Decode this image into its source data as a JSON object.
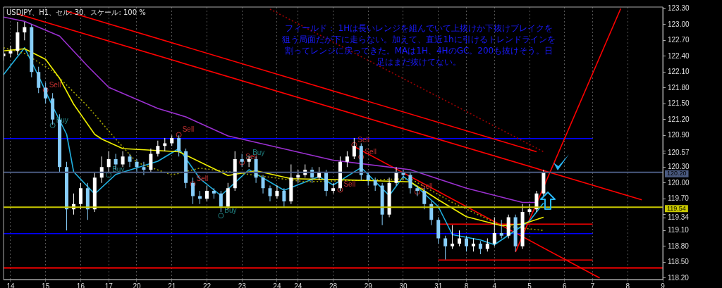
{
  "chart_data": {
    "type": "candlestick",
    "title": "USDJPY、H1、セル: 30、スケール: 100 %",
    "annotations": [
      "フィールド： 1Hは長いレンジを組んでいて上抜けか下抜けブレイクを狙う局面だが下に走らない。加えて、直近1hに引けるトレンドラインを割ってレンジに戻ってきた。MAは1H、4HのGC。200も抜けそう。日足はまだ抜けてない。"
    ],
    "categories": [
      null,
      "14",
      null,
      null,
      null,
      null,
      "15",
      null,
      null,
      null,
      null,
      "16",
      null,
      null,
      null,
      "17",
      null,
      null,
      null,
      "20",
      null,
      null,
      null,
      null,
      "21",
      null,
      null,
      null,
      null,
      "22",
      null,
      null,
      null,
      null,
      "23",
      null,
      null,
      null,
      null,
      "24",
      null,
      null,
      "24",
      null,
      null,
      null,
      null,
      "28",
      null,
      null,
      null,
      null,
      "29",
      null,
      null,
      null,
      null,
      "30",
      null,
      null,
      null,
      null,
      "31",
      null,
      null,
      null,
      "8",
      null,
      null,
      null,
      "4",
      null,
      null,
      null,
      null,
      "5",
      null,
      null,
      null,
      null,
      "6",
      null,
      null,
      null,
      "7",
      null,
      null,
      null,
      null,
      "8",
      null,
      null,
      null,
      null,
      "9"
    ],
    "ylim": [
      118.17,
      123.33
    ],
    "yticks": [
      {
        "value": 118.2,
        "label": "118.20"
      },
      {
        "value": 118.5,
        "label": "118.50"
      },
      {
        "value": 118.8,
        "label": "118.80"
      },
      {
        "value": 119.1,
        "label": "119.10"
      },
      {
        "value": 119.34,
        "label": "119.34"
      },
      {
        "value": 119.4,
        "label": null
      },
      {
        "value": 119.7,
        "label": "119.70"
      },
      {
        "value": 120.0,
        "label": "120.00"
      },
      {
        "value": 120.3,
        "label": "120.30"
      },
      {
        "value": 120.57,
        "label": "120.57"
      },
      {
        "value": 120.6,
        "label": null
      },
      {
        "value": 120.9,
        "label": "120.90"
      },
      {
        "value": 121.2,
        "label": "121.20"
      },
      {
        "value": 121.5,
        "label": "121.50"
      },
      {
        "value": 121.8,
        "label": "121.80"
      },
      {
        "value": 122.1,
        "label": "122.10"
      },
      {
        "value": 122.4,
        "label": "122.40"
      },
      {
        "value": 122.7,
        "label": "122.70"
      },
      {
        "value": 123.0,
        "label": "123.00"
      },
      {
        "value": 123.3,
        "label": "123.30"
      }
    ],
    "grid": "x",
    "ref_lines": [
      {
        "axis": "y",
        "value": 120.2,
        "label": "120.20",
        "color": "#4a5a80"
      },
      {
        "axis": "y",
        "value": 119.54,
        "label": "119.54",
        "color": "#c8c800"
      },
      {
        "axis": "y",
        "value": 118.39,
        "color": "#ff0000"
      }
    ],
    "series": [
      {
        "colors": [
          "#ffffff",
          "#ffffff",
          "#ffffff",
          "#ffffff",
          "#87cefa",
          "#87cefa",
          "#87cefa",
          "#87cefa",
          "#87cefa",
          "#87cefa",
          "#ffffff",
          "#ffffff",
          "#87cefa",
          "#ffffff",
          "#ffffff",
          "#ffffff",
          "#87cefa",
          "#ffffff",
          "#87cefa",
          "#87cefa",
          "#87cefa",
          "#ffffff",
          "#ffffff",
          "#ffffff",
          "#ffffff",
          "#87cefa",
          "#87cefa",
          "#87cefa",
          "#87cefa",
          "#ffffff",
          "#87cefa",
          "#87cefa",
          "#ffffff",
          "#ffffff",
          "#87cefa",
          "#ffffff",
          "#87cefa",
          "#87cefa",
          "#87cefa",
          "#ffffff",
          "#87cefa",
          "#ffffff",
          "#ffffff",
          "#ffffff",
          "#87cefa",
          "#ffffff",
          "#87cefa",
          "#ffffff",
          "#ffffff",
          "#ffffff",
          "#ffffff",
          "#87cefa",
          "#87cefa",
          "#87cefa",
          "#87cefa",
          "#ffffff",
          "#ffffff",
          "#87cefa",
          "#87cefa",
          "#87cefa",
          "#87cefa",
          "#87cefa",
          "#87cefa",
          "#87cefa",
          "#ffffff",
          "#ffffff",
          "#87cefa",
          "#ffffff",
          "#87cefa",
          "#ffffff",
          "#ffffff",
          "#87cefa",
          "#ffffff",
          "#87cefa",
          "#ffffff",
          "#ffffff",
          "#ffffff",
          "#ffffff",
          null,
          null,
          null,
          null,
          null,
          null,
          null,
          null,
          null,
          null,
          null,
          null,
          null,
          null,
          null,
          null,
          null
        ],
        "ohlc": [
          [
            122.4,
            122.55,
            122.32,
            122.45
          ],
          [
            122.45,
            122.6,
            122.38,
            122.5
          ],
          [
            122.5,
            123.05,
            122.42,
            122.85
          ],
          [
            122.85,
            123.05,
            122.7,
            122.95
          ],
          [
            122.95,
            123.0,
            122.0,
            122.1
          ],
          [
            122.1,
            122.2,
            121.7,
            121.8
          ],
          [
            121.8,
            121.9,
            121.5,
            121.6
          ],
          [
            121.6,
            121.7,
            121.1,
            121.2
          ],
          [
            121.2,
            121.3,
            120.2,
            120.3
          ],
          [
            120.3,
            120.4,
            119.1,
            119.5
          ],
          [
            119.5,
            119.8,
            119.4,
            119.6
          ],
          [
            119.6,
            120.0,
            119.5,
            119.9
          ],
          [
            119.9,
            120.0,
            119.3,
            119.5
          ],
          [
            119.5,
            120.2,
            119.45,
            120.1
          ],
          [
            120.1,
            120.5,
            120.0,
            120.3
          ],
          [
            120.3,
            120.6,
            120.2,
            120.45
          ],
          [
            120.45,
            120.55,
            120.25,
            120.35
          ],
          [
            120.35,
            120.6,
            120.3,
            120.5
          ],
          [
            120.5,
            120.55,
            120.3,
            120.4
          ],
          [
            120.4,
            120.45,
            120.2,
            120.3
          ],
          [
            120.3,
            120.4,
            120.15,
            120.25
          ],
          [
            120.25,
            120.65,
            120.2,
            120.55
          ],
          [
            120.55,
            120.8,
            120.5,
            120.7
          ],
          [
            120.7,
            120.85,
            120.6,
            120.75
          ],
          [
            120.75,
            120.9,
            120.7,
            120.85
          ],
          [
            120.85,
            120.9,
            120.5,
            120.6
          ],
          [
            120.6,
            120.65,
            119.9,
            120.0
          ],
          [
            120.0,
            120.1,
            119.6,
            119.75
          ],
          [
            119.75,
            119.85,
            119.6,
            119.7
          ],
          [
            119.7,
            119.95,
            119.65,
            119.85
          ],
          [
            119.85,
            119.9,
            119.7,
            119.8
          ],
          [
            119.8,
            119.85,
            119.45,
            119.55
          ],
          [
            119.55,
            120.0,
            119.5,
            119.9
          ],
          [
            119.9,
            120.6,
            119.85,
            120.45
          ],
          [
            120.45,
            120.55,
            120.3,
            120.4
          ],
          [
            120.4,
            120.5,
            120.3,
            120.45
          ],
          [
            120.45,
            120.5,
            120.0,
            120.1
          ],
          [
            120.1,
            120.15,
            119.8,
            119.9
          ],
          [
            119.9,
            119.95,
            119.65,
            119.75
          ],
          [
            119.75,
            119.95,
            119.7,
            119.85
          ],
          [
            119.85,
            119.9,
            119.55,
            119.65
          ],
          [
            119.65,
            120.35,
            119.6,
            120.1
          ],
          [
            120.1,
            120.25,
            120.0,
            120.15
          ],
          [
            120.15,
            120.35,
            120.1,
            120.25
          ],
          [
            120.25,
            120.3,
            120.0,
            120.1
          ],
          [
            120.1,
            120.3,
            120.05,
            120.2
          ],
          [
            120.2,
            120.25,
            119.75,
            119.85
          ],
          [
            119.85,
            120.0,
            119.8,
            119.9
          ],
          [
            119.9,
            120.5,
            119.85,
            120.4
          ],
          [
            120.4,
            120.6,
            120.3,
            120.5
          ],
          [
            120.5,
            120.85,
            120.45,
            120.7
          ],
          [
            120.7,
            120.75,
            120.05,
            120.15
          ],
          [
            120.15,
            120.2,
            119.95,
            120.05
          ],
          [
            120.05,
            120.1,
            119.85,
            119.95
          ],
          [
            119.95,
            120.0,
            119.2,
            119.4
          ],
          [
            119.4,
            120.1,
            119.35,
            120.0
          ],
          [
            120.0,
            120.3,
            119.95,
            120.2
          ],
          [
            120.2,
            120.25,
            120.05,
            120.15
          ],
          [
            120.15,
            120.2,
            119.8,
            119.9
          ],
          [
            119.9,
            119.95,
            119.75,
            119.85
          ],
          [
            119.85,
            119.9,
            119.5,
            119.6
          ],
          [
            119.6,
            119.65,
            119.2,
            119.3
          ],
          [
            119.3,
            119.35,
            118.85,
            118.95
          ],
          [
            118.95,
            119.0,
            118.55,
            118.8
          ],
          [
            118.8,
            119.2,
            118.75,
            118.85
          ],
          [
            118.85,
            119.1,
            118.8,
            118.95
          ],
          [
            118.95,
            119.0,
            118.7,
            118.8
          ],
          [
            118.8,
            118.95,
            118.7,
            118.85
          ],
          [
            118.85,
            118.9,
            118.65,
            118.75
          ],
          [
            118.75,
            118.95,
            118.7,
            118.85
          ],
          [
            118.85,
            119.35,
            118.8,
            119.05
          ],
          [
            119.05,
            119.3,
            118.95,
            119.0
          ],
          [
            119.0,
            119.4,
            118.95,
            119.35
          ],
          [
            119.35,
            119.4,
            118.7,
            118.8
          ],
          [
            118.8,
            119.6,
            118.75,
            119.45
          ],
          [
            119.45,
            119.6,
            119.4,
            119.5
          ],
          [
            119.5,
            119.85,
            119.45,
            119.8
          ],
          [
            119.8,
            120.25,
            119.75,
            120.2
          ],
          null,
          null,
          null,
          null,
          null,
          null,
          null,
          null,
          null,
          null,
          null,
          null,
          null,
          null,
          null,
          null,
          null
        ]
      },
      {
        "type": "line",
        "color": "#9b30d0",
        "values": [
          123.14,
          null,
          null,
          123.06,
          null,
          null,
          null,
          null,
          122.78,
          null,
          null,
          null,
          122.21,
          null,
          null,
          121.81,
          null,
          null,
          null,
          null,
          null,
          null,
          121.41,
          null,
          null,
          null,
          121.25,
          null,
          null,
          null,
          null,
          null,
          120.89,
          null,
          null,
          null,
          null,
          null,
          null,
          null,
          null,
          null,
          null,
          null,
          null,
          null,
          null,
          120.43,
          null,
          null,
          null,
          null,
          null,
          null,
          null,
          null,
          null,
          null,
          120.25,
          null,
          null,
          null,
          null,
          null,
          null,
          null,
          119.9,
          null,
          null,
          null,
          null,
          null,
          null,
          null,
          119.63,
          null,
          119.63,
          null,
          null,
          null,
          null,
          null,
          null,
          null,
          null,
          null,
          null,
          null,
          null,
          null,
          null,
          null,
          null,
          null,
          null
        ]
      },
      {
        "type": "line",
        "color": "#f0f000",
        "values": [
          122.5,
          null,
          null,
          122.54,
          null,
          null,
          122.34,
          null,
          121.98,
          null,
          121.49,
          null,
          null,
          120.92,
          120.83,
          null,
          null,
          120.65,
          null,
          null,
          null,
          null,
          null,
          null,
          null,
          120.59,
          null,
          null,
          null,
          null,
          null,
          null,
          120.14,
          null,
          null,
          null,
          120.23,
          null,
          null,
          null,
          null,
          120.08,
          null,
          null,
          null,
          null,
          null,
          null,
          120.06,
          null,
          null,
          null,
          null,
          null,
          null,
          null,
          null,
          null,
          120.02,
          null,
          null,
          null,
          119.68,
          null,
          null,
          null,
          119.36,
          null,
          null,
          null,
          null,
          119.19,
          null,
          null,
          119.22,
          null,
          null,
          119.35,
          null,
          null,
          null,
          null,
          null,
          null,
          null,
          null,
          null,
          null,
          null,
          null,
          null,
          null,
          null,
          null,
          null
        ]
      },
      {
        "type": "line",
        "color": "#a0a000",
        "line_style": "dotted",
        "values": [
          122.56,
          null,
          null,
          122.45,
          null,
          null,
          null,
          122.12,
          null,
          null,
          null,
          null,
          121.45,
          null,
          null,
          null,
          120.83,
          null,
          null,
          120.39,
          null,
          null,
          null,
          null,
          120.15,
          null,
          null,
          null,
          120.28,
          null,
          null,
          null,
          null,
          null,
          null,
          120.16,
          null,
          null,
          null,
          null,
          null,
          null,
          null,
          120.02,
          null,
          null,
          null,
          null,
          null,
          null,
          null,
          null,
          null,
          null,
          null,
          null,
          null,
          null,
          120.08,
          null,
          null,
          null,
          null,
          null,
          119.63,
          null,
          null,
          null,
          null,
          null,
          null,
          119.19,
          null,
          null,
          null,
          null,
          null,
          119.1,
          null,
          null,
          null,
          null,
          null,
          null,
          null,
          null,
          null,
          null,
          null,
          null,
          null,
          null,
          null,
          null,
          null
        ]
      },
      {
        "type": "line",
        "color": "#20b0e0",
        "values": [
          122.05,
          null,
          null,
          122.56,
          null,
          122.02,
          null,
          121.45,
          null,
          120.92,
          120.21,
          null,
          null,
          119.79,
          null,
          null,
          120.16,
          null,
          null,
          null,
          null,
          null,
          120.41,
          null,
          null,
          120.65,
          null,
          null,
          120.08,
          null,
          null,
          119.76,
          null,
          null,
          null,
          120.25,
          null,
          null,
          null,
          null,
          119.86,
          null,
          null,
          null,
          null,
          120.12,
          null,
          119.96,
          null,
          null,
          null,
          120.29,
          null,
          null,
          null,
          119.76,
          null,
          120.12,
          null,
          119.92,
          null,
          null,
          119.55,
          null,
          119.02,
          null,
          null,
          null,
          118.92,
          null,
          118.83,
          null,
          null,
          119.1,
          null,
          119.28,
          null,
          119.62,
          null,
          null,
          null,
          null,
          null,
          null,
          null,
          null,
          null,
          null,
          null,
          null,
          null,
          null,
          null,
          null,
          null
        ]
      },
      {
        "type": "line",
        "color": "#ff0000",
        "values": [
          null,
          null,
          123.2,
          null,
          null,
          null,
          null,
          null,
          null,
          null,
          null,
          null,
          null,
          null,
          null,
          null,
          null,
          null,
          null,
          null,
          null,
          null,
          null,
          null,
          null,
          null,
          null,
          null,
          null,
          null,
          null,
          null,
          null,
          null,
          null,
          null,
          null,
          null,
          null,
          null,
          null,
          null,
          null,
          null,
          null,
          null,
          null,
          null,
          null,
          null,
          null,
          null,
          null,
          null,
          null,
          null,
          null,
          null,
          null,
          null,
          null,
          null,
          null,
          null,
          null,
          null,
          null,
          null,
          null,
          null,
          null,
          null,
          null,
          null,
          null,
          null,
          null,
          null,
          null,
          null,
          null,
          null,
          null,
          null,
          null,
          null,
          null,
          null,
          null,
          null,
          null,
          119.68,
          null,
          null,
          null
        ]
      },
      {
        "type": "line",
        "color": "#ff0000",
        "values": [
          null,
          null,
          null,
          null,
          null,
          null,
          null,
          null,
          null,
          123.25,
          null,
          null,
          null,
          null,
          null,
          null,
          null,
          null,
          null,
          null,
          null,
          null,
          null,
          null,
          null,
          null,
          null,
          null,
          null,
          null,
          null,
          null,
          null,
          null,
          null,
          null,
          null,
          null,
          null,
          null,
          null,
          null,
          null,
          null,
          null,
          null,
          null,
          null,
          null,
          null,
          null,
          null,
          null,
          null,
          null,
          null,
          null,
          null,
          null,
          null,
          null,
          null,
          null,
          null,
          null,
          null,
          null,
          null,
          null,
          null,
          null,
          null,
          null,
          null,
          null,
          null,
          120.59,
          null,
          null,
          null,
          null,
          null,
          null,
          null,
          null,
          null,
          null,
          null,
          null,
          null,
          null,
          null,
          null,
          null,
          null
        ]
      },
      {
        "type": "line",
        "color": "#a00000",
        "line_style": "dotted",
        "values": [
          null,
          null,
          null,
          null,
          null,
          null,
          null,
          null,
          null,
          null,
          null,
          null,
          null,
          null,
          null,
          null,
          null,
          null,
          null,
          null,
          null,
          null,
          null,
          null,
          null,
          null,
          null,
          null,
          null,
          null,
          null,
          null,
          null,
          null,
          null,
          null,
          null,
          null,
          123.29,
          null,
          null,
          null,
          null,
          null,
          null,
          null,
          null,
          null,
          null,
          null,
          null,
          null,
          null,
          null,
          null,
          null,
          null,
          null,
          null,
          null,
          null,
          null,
          null,
          null,
          null,
          null,
          null,
          null,
          null,
          null,
          null,
          null,
          null,
          null,
          null,
          null,
          null,
          120.59,
          null,
          null,
          null,
          null,
          null,
          null,
          null,
          null,
          null,
          null,
          null,
          null,
          null,
          null,
          null,
          null,
          null
        ]
      },
      {
        "type": "line",
        "color": "#ff0000",
        "values": [
          null,
          null,
          null,
          null,
          null,
          null,
          null,
          null,
          null,
          null,
          null,
          null,
          null,
          null,
          null,
          null,
          null,
          null,
          null,
          null,
          null,
          null,
          null,
          null,
          null,
          null,
          null,
          null,
          null,
          null,
          null,
          null,
          null,
          null,
          null,
          null,
          null,
          null,
          null,
          null,
          null,
          null,
          null,
          null,
          null,
          null,
          null,
          null,
          null,
          null,
          null,
          null,
          null,
          null,
          null,
          null,
          null,
          null,
          null,
          null,
          null,
          null,
          null,
          null,
          null,
          null,
          null,
          null,
          null,
          null,
          null,
          null,
          null,
          118.69,
          null,
          null,
          null,
          null,
          null,
          null,
          null,
          null,
          null,
          null,
          null,
          null,
          null,
          null,
          123.3,
          null,
          null,
          null,
          null,
          null,
          null
        ]
      },
      {
        "type": "line",
        "color": "#ff0000",
        "values": [
          null,
          null,
          null,
          null,
          null,
          null,
          null,
          null,
          null,
          null,
          null,
          null,
          null,
          null,
          null,
          null,
          null,
          null,
          null,
          null,
          null,
          null,
          null,
          null,
          null,
          null,
          null,
          null,
          null,
          null,
          null,
          null,
          null,
          null,
          null,
          null,
          null,
          null,
          null,
          null,
          null,
          null,
          null,
          null,
          null,
          null,
          null,
          null,
          null,
          null,
          120.69,
          null,
          null,
          null,
          null,
          null,
          null,
          null,
          null,
          null,
          null,
          null,
          null,
          null,
          null,
          null,
          null,
          null,
          null,
          null,
          null,
          null,
          null,
          null,
          null,
          null,
          null,
          null,
          null,
          null,
          null,
          null,
          null,
          null,
          null,
          118.2,
          null,
          null,
          null,
          null,
          null,
          null,
          null,
          null,
          null
        ]
      },
      {
        "type": "line",
        "color": "#0000ff",
        "values": [
          120.84,
          null,
          null,
          null,
          null,
          null,
          null,
          null,
          null,
          null,
          null,
          null,
          null,
          null,
          null,
          null,
          null,
          null,
          null,
          null,
          null,
          null,
          null,
          null,
          null,
          null,
          null,
          null,
          null,
          null,
          null,
          null,
          null,
          null,
          null,
          null,
          null,
          null,
          null,
          null,
          null,
          null,
          null,
          null,
          null,
          null,
          null,
          null,
          null,
          null,
          null,
          null,
          null,
          null,
          null,
          null,
          null,
          null,
          null,
          null,
          null,
          null,
          null,
          null,
          null,
          null,
          null,
          null,
          null,
          null,
          null,
          null,
          null,
          null,
          null,
          null,
          null,
          null,
          null,
          null,
          null,
          null,
          null,
          null,
          120.84,
          null,
          null,
          null,
          null,
          null,
          null,
          null,
          null,
          null,
          null
        ]
      },
      {
        "type": "line",
        "color": "#0000ff",
        "values": [
          119.04,
          null,
          null,
          null,
          null,
          null,
          null,
          null,
          null,
          null,
          null,
          null,
          null,
          null,
          null,
          null,
          null,
          null,
          null,
          null,
          null,
          null,
          null,
          null,
          null,
          null,
          null,
          null,
          null,
          null,
          null,
          null,
          null,
          null,
          null,
          null,
          null,
          null,
          null,
          null,
          null,
          null,
          null,
          null,
          null,
          null,
          null,
          null,
          null,
          null,
          null,
          null,
          null,
          null,
          null,
          null,
          null,
          null,
          null,
          null,
          null,
          null,
          null,
          null,
          null,
          null,
          null,
          null,
          null,
          null,
          null,
          null,
          null,
          null,
          null,
          null,
          null,
          null,
          null,
          null,
          null,
          null,
          null,
          null,
          119.04,
          null,
          null,
          null,
          null,
          null,
          null,
          null,
          null,
          null,
          null
        ]
      },
      {
        "type": "line",
        "color": "#ff0000",
        "values": [
          null,
          null,
          null,
          null,
          null,
          null,
          null,
          null,
          null,
          null,
          null,
          null,
          null,
          null,
          null,
          null,
          null,
          null,
          null,
          null,
          null,
          null,
          null,
          null,
          null,
          null,
          null,
          null,
          null,
          null,
          null,
          null,
          null,
          null,
          null,
          null,
          null,
          null,
          null,
          null,
          null,
          null,
          null,
          null,
          null,
          null,
          null,
          null,
          null,
          null,
          null,
          null,
          null,
          null,
          null,
          null,
          null,
          null,
          null,
          null,
          null,
          null,
          119.22,
          null,
          null,
          null,
          null,
          null,
          null,
          null,
          null,
          null,
          null,
          null,
          null,
          null,
          null,
          null,
          null,
          null,
          null,
          null,
          null,
          null,
          119.22,
          null,
          null,
          null,
          null,
          null,
          null,
          null,
          null,
          null,
          null
        ]
      },
      {
        "type": "line",
        "color": "#ff0000",
        "values": [
          null,
          null,
          null,
          null,
          null,
          null,
          null,
          null,
          null,
          null,
          null,
          null,
          null,
          null,
          null,
          null,
          null,
          null,
          null,
          null,
          null,
          null,
          null,
          null,
          null,
          null,
          null,
          null,
          null,
          null,
          null,
          null,
          null,
          null,
          null,
          null,
          null,
          null,
          null,
          null,
          null,
          null,
          null,
          null,
          null,
          null,
          null,
          null,
          null,
          null,
          null,
          null,
          null,
          null,
          null,
          null,
          null,
          null,
          null,
          null,
          null,
          null,
          118.54,
          null,
          null,
          null,
          null,
          null,
          null,
          null,
          null,
          null,
          null,
          null,
          null,
          null,
          null,
          null,
          null,
          null,
          null,
          null,
          null,
          null,
          118.54,
          null,
          null,
          null,
          null,
          null,
          null,
          null,
          null,
          null,
          null
        ]
      },
      {
        "type": "scatter",
        "name": "Sell",
        "color": "#c03030",
        "marker": "circle",
        "values": [
          null,
          null,
          null,
          null,
          null,
          null,
          121.76,
          null,
          null,
          null,
          null,
          null,
          null,
          null,
          null,
          null,
          null,
          null,
          null,
          null,
          null,
          null,
          null,
          null,
          null,
          120.91,
          null,
          119.98,
          null,
          null,
          null,
          null,
          null,
          null,
          120.39,
          null,
          null,
          null,
          null,
          null,
          null,
          null,
          null,
          null,
          null,
          null,
          null,
          null,
          119.87,
          null,
          120.72,
          120.49,
          null,
          null,
          null,
          null,
          null,
          null,
          null,
          119.83,
          null,
          null,
          null,
          null,
          null,
          null,
          null,
          null,
          null,
          null,
          null,
          null,
          null,
          null,
          null,
          null,
          null,
          null,
          null,
          null,
          null,
          null,
          null,
          null,
          null,
          null,
          null,
          null,
          null,
          null,
          null,
          null,
          null,
          null,
          null
        ]
      },
      {
        "type": "scatter",
        "name": "Buy",
        "color": "#208080",
        "marker": "circle",
        "values": [
          null,
          null,
          null,
          null,
          null,
          null,
          null,
          121.09,
          null,
          null,
          null,
          null,
          null,
          null,
          null,
          120.15,
          null,
          null,
          null,
          null,
          null,
          null,
          null,
          null,
          null,
          null,
          null,
          null,
          null,
          null,
          null,
          119.38,
          null,
          null,
          null,
          120.47,
          null,
          null,
          null,
          null,
          null,
          null,
          null,
          null,
          null,
          null,
          null,
          null,
          null,
          null,
          null,
          null,
          null,
          null,
          null,
          null,
          null,
          null,
          null,
          null,
          null,
          null,
          null,
          null,
          null,
          null,
          null,
          null,
          null,
          null,
          null,
          null,
          null,
          null,
          null,
          null,
          null,
          null,
          null,
          null,
          null,
          null,
          null,
          null,
          null,
          null,
          null,
          null,
          null,
          null,
          null,
          null,
          null,
          null,
          null
        ]
      }
    ]
  }
}
